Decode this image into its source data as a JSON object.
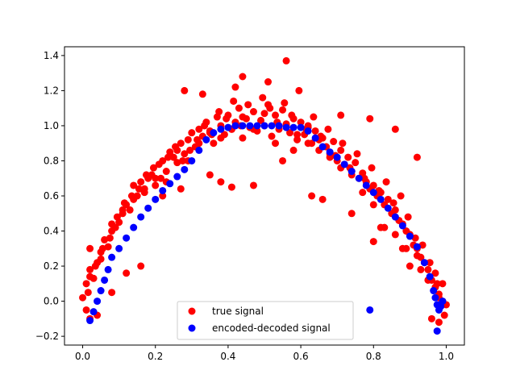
{
  "chart_data": {
    "type": "scatter",
    "xlim": [
      -0.05,
      1.05
    ],
    "ylim": [
      -0.25,
      1.45
    ],
    "x_ticks": [
      0.0,
      0.2,
      0.4,
      0.6,
      0.8,
      1.0
    ],
    "x_tick_labels": [
      "0.0",
      "0.2",
      "0.4",
      "0.6",
      "0.8",
      "1.0"
    ],
    "y_ticks": [
      -0.2,
      0.0,
      0.2,
      0.4,
      0.6,
      0.8,
      1.0,
      1.2,
      1.4
    ],
    "y_tick_labels": [
      "−0.2",
      "0.0",
      "0.2",
      "0.4",
      "0.6",
      "0.8",
      "1.0",
      "1.2",
      "1.4"
    ],
    "grid": false,
    "legend_position": "lower center",
    "series": [
      {
        "name": "true signal",
        "color": "#ff0000",
        "x": [
          0.0,
          0.01,
          0.02,
          0.03,
          0.04,
          0.05,
          0.06,
          0.07,
          0.08,
          0.09,
          0.1,
          0.11,
          0.12,
          0.13,
          0.14,
          0.15,
          0.16,
          0.17,
          0.18,
          0.19,
          0.2,
          0.21,
          0.22,
          0.23,
          0.24,
          0.25,
          0.26,
          0.27,
          0.28,
          0.29,
          0.3,
          0.31,
          0.32,
          0.33,
          0.34,
          0.35,
          0.36,
          0.37,
          0.38,
          0.39,
          0.4,
          0.41,
          0.42,
          0.43,
          0.44,
          0.45,
          0.46,
          0.47,
          0.48,
          0.49,
          0.5,
          0.51,
          0.52,
          0.53,
          0.54,
          0.55,
          0.56,
          0.57,
          0.58,
          0.59,
          0.6,
          0.61,
          0.62,
          0.63,
          0.64,
          0.65,
          0.66,
          0.67,
          0.68,
          0.69,
          0.7,
          0.71,
          0.72,
          0.73,
          0.74,
          0.75,
          0.76,
          0.77,
          0.78,
          0.79,
          0.8,
          0.81,
          0.82,
          0.83,
          0.84,
          0.85,
          0.86,
          0.87,
          0.88,
          0.89,
          0.9,
          0.91,
          0.92,
          0.93,
          0.94,
          0.95,
          0.96,
          0.97,
          0.98,
          0.99,
          1.0,
          0.015,
          0.035,
          0.055,
          0.075,
          0.095,
          0.115,
          0.135,
          0.155,
          0.175,
          0.195,
          0.215,
          0.235,
          0.255,
          0.275,
          0.295,
          0.315,
          0.335,
          0.355,
          0.375,
          0.395,
          0.415,
          0.435,
          0.455,
          0.475,
          0.495,
          0.515,
          0.535,
          0.555,
          0.575,
          0.595,
          0.615,
          0.635,
          0.655,
          0.675,
          0.695,
          0.715,
          0.735,
          0.755,
          0.775,
          0.795,
          0.815,
          0.835,
          0.855,
          0.875,
          0.895,
          0.915,
          0.935,
          0.955,
          0.975,
          0.995,
          0.02,
          0.05,
          0.08,
          0.11,
          0.14,
          0.17,
          0.2,
          0.23,
          0.26,
          0.29,
          0.32,
          0.35,
          0.38,
          0.41,
          0.44,
          0.47,
          0.5,
          0.53,
          0.56,
          0.59,
          0.62,
          0.65,
          0.68,
          0.71,
          0.74,
          0.77,
          0.8,
          0.83,
          0.86,
          0.89,
          0.92,
          0.95,
          0.98,
          0.28,
          0.33,
          0.44,
          0.56,
          0.42,
          0.51,
          0.71,
          0.79,
          0.86,
          0.92,
          0.97,
          0.99,
          0.02,
          0.01,
          0.04,
          0.08,
          0.12,
          0.16,
          0.02,
          0.98,
          0.96,
          0.9,
          0.55,
          0.58,
          0.47,
          0.38,
          0.41,
          0.35,
          0.63,
          0.66,
          0.74,
          0.82,
          0.88,
          0.93,
          0.27,
          0.22,
          0.62,
          0.8
        ],
        "y": [
          0.02,
          0.1,
          0.14,
          0.13,
          0.22,
          0.28,
          0.35,
          0.31,
          0.4,
          0.42,
          0.45,
          0.5,
          0.55,
          0.52,
          0.58,
          0.6,
          0.68,
          0.62,
          0.7,
          0.72,
          0.66,
          0.78,
          0.8,
          0.74,
          0.85,
          0.82,
          0.86,
          0.9,
          0.84,
          0.92,
          0.96,
          0.88,
          0.98,
          0.94,
          1.02,
          0.97,
          0.9,
          1.05,
          1.0,
          0.95,
          1.06,
          0.98,
          1.02,
          1.1,
          0.93,
          1.04,
          0.99,
          1.08,
          0.97,
          1.03,
          1.0,
          1.12,
          0.94,
          1.06,
          0.98,
          1.09,
          1.01,
          0.96,
          1.04,
          0.92,
          1.02,
          0.95,
          0.99,
          0.9,
          0.97,
          0.86,
          0.93,
          0.88,
          0.84,
          0.91,
          0.8,
          0.86,
          0.78,
          0.82,
          0.74,
          0.79,
          0.7,
          0.73,
          0.68,
          0.64,
          0.66,
          0.6,
          0.62,
          0.55,
          0.58,
          0.5,
          0.52,
          0.46,
          0.44,
          0.4,
          0.38,
          0.32,
          0.3,
          0.25,
          0.22,
          0.18,
          0.12,
          0.08,
          0.04,
          0.0,
          -0.02,
          0.05,
          0.2,
          0.3,
          0.36,
          0.48,
          0.56,
          0.6,
          0.64,
          0.72,
          0.76,
          0.7,
          0.82,
          0.88,
          0.8,
          0.86,
          0.92,
          1.0,
          0.95,
          1.08,
          1.04,
          1.14,
          1.0,
          1.12,
          0.98,
          1.16,
          1.1,
          1.02,
          1.13,
          1.06,
          1.2,
          0.98,
          1.05,
          0.94,
          0.98,
          0.83,
          0.9,
          0.76,
          0.84,
          0.7,
          0.76,
          0.63,
          0.68,
          0.56,
          0.6,
          0.48,
          0.36,
          0.32,
          0.22,
          0.1,
          -0.08,
          0.18,
          0.24,
          0.44,
          0.52,
          0.66,
          0.64,
          0.7,
          0.68,
          0.79,
          0.8,
          0.9,
          0.96,
          0.93,
          0.98,
          1.05,
          0.98,
          1.07,
          0.9,
          1.0,
          0.95,
          1.0,
          0.92,
          0.82,
          0.76,
          0.72,
          0.62,
          0.55,
          0.42,
          0.38,
          0.3,
          0.26,
          0.12,
          0.02,
          1.2,
          1.18,
          1.28,
          1.37,
          1.22,
          1.25,
          1.06,
          1.04,
          0.98,
          0.82,
          0.16,
          0.1,
          -0.1,
          -0.05,
          -0.08,
          0.05,
          0.16,
          0.2,
          0.3,
          -0.12,
          -0.1,
          0.2,
          0.8,
          0.86,
          0.66,
          0.68,
          0.65,
          0.72,
          0.6,
          0.58,
          0.5,
          0.42,
          0.3,
          0.18,
          0.64,
          0.6,
          0.9,
          0.34
        ]
      },
      {
        "name": "encoded-decoded signal",
        "color": "#0000ff",
        "x": [
          0.02,
          0.03,
          0.04,
          0.05,
          0.06,
          0.07,
          0.08,
          0.1,
          0.12,
          0.14,
          0.16,
          0.18,
          0.2,
          0.22,
          0.24,
          0.26,
          0.28,
          0.3,
          0.32,
          0.34,
          0.36,
          0.38,
          0.4,
          0.42,
          0.44,
          0.46,
          0.48,
          0.5,
          0.52,
          0.54,
          0.56,
          0.58,
          0.6,
          0.62,
          0.64,
          0.66,
          0.68,
          0.7,
          0.72,
          0.74,
          0.76,
          0.78,
          0.8,
          0.82,
          0.84,
          0.86,
          0.88,
          0.9,
          0.92,
          0.94,
          0.955,
          0.965,
          0.97,
          0.975,
          0.98,
          0.985,
          0.79,
          0.975,
          0.99
        ],
        "y": [
          -0.11,
          -0.06,
          0.0,
          0.06,
          0.12,
          0.18,
          0.25,
          0.3,
          0.36,
          0.42,
          0.48,
          0.53,
          0.58,
          0.63,
          0.67,
          0.71,
          0.75,
          0.8,
          0.86,
          0.92,
          0.96,
          0.98,
          0.99,
          1.0,
          1.0,
          1.0,
          1.0,
          1.0,
          1.0,
          1.0,
          0.99,
          0.99,
          0.99,
          0.97,
          0.93,
          0.88,
          0.85,
          0.82,
          0.78,
          0.74,
          0.7,
          0.66,
          0.62,
          0.58,
          0.53,
          0.48,
          0.43,
          0.37,
          0.31,
          0.22,
          0.14,
          0.06,
          0.02,
          -0.02,
          -0.05,
          -0.03,
          -0.05,
          -0.17,
          0.0
        ]
      }
    ]
  }
}
